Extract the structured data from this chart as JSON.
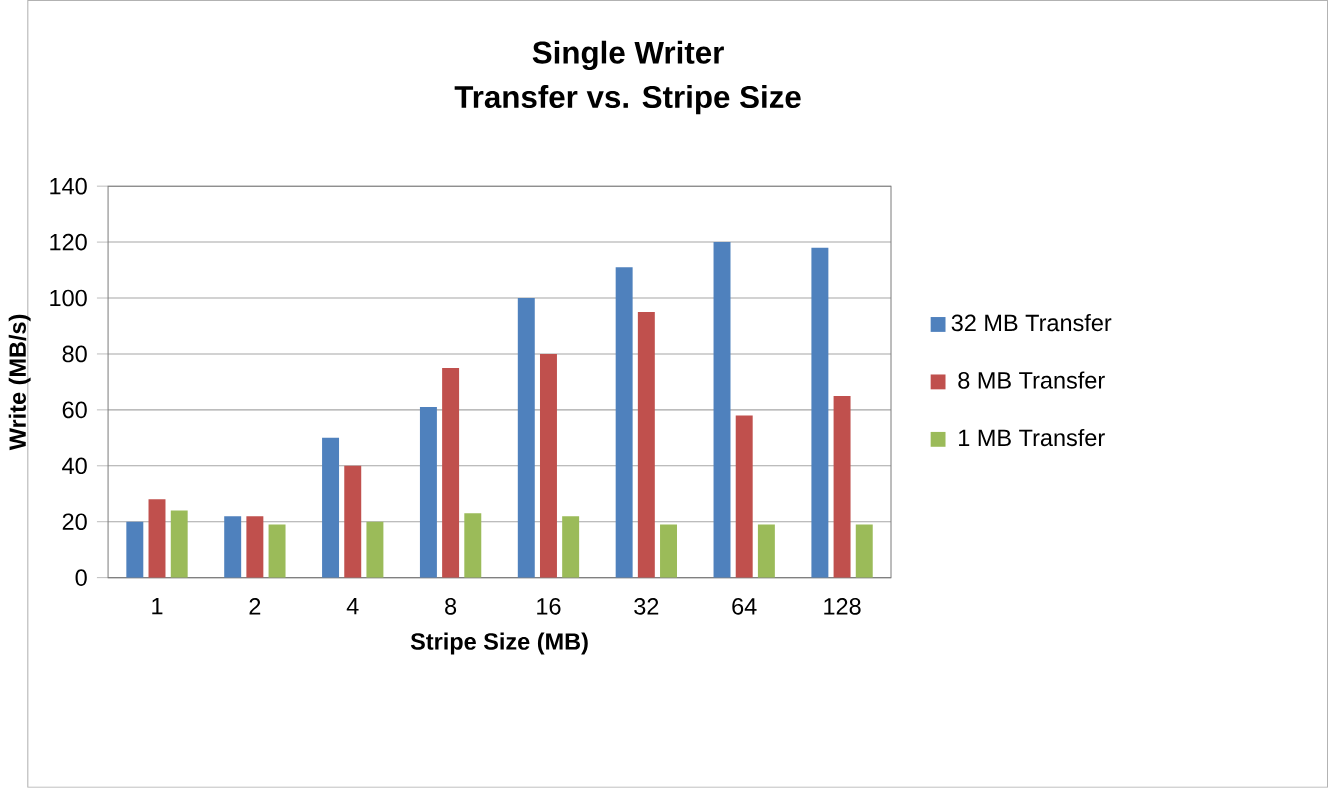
{
  "chart_data": {
    "type": "bar",
    "title": "Single Writer\nTransfer vs. Stripe Size",
    "xlabel": "Stripe Size (MB)",
    "ylabel": "Write (MB/s)",
    "categories": [
      "1",
      "2",
      "4",
      "8",
      "16",
      "32",
      "64",
      "128"
    ],
    "series": [
      {
        "name": "32 MB Transfer",
        "color": "#4f81bd",
        "values": [
          20,
          22,
          50,
          61,
          100,
          111,
          120,
          118
        ]
      },
      {
        "name": "8 MB Transfer",
        "color": "#c0504d",
        "values": [
          28,
          22,
          40,
          75,
          80,
          95,
          58,
          65
        ]
      },
      {
        "name": "1 MB Transfer",
        "color": "#9bbb59",
        "values": [
          24,
          19,
          20,
          23,
          22,
          19,
          19,
          19
        ]
      }
    ],
    "ylim": [
      0,
      140
    ],
    "yticks": [
      0,
      20,
      40,
      60,
      80,
      100,
      120,
      140
    ],
    "grid": "y",
    "legend": "right"
  }
}
